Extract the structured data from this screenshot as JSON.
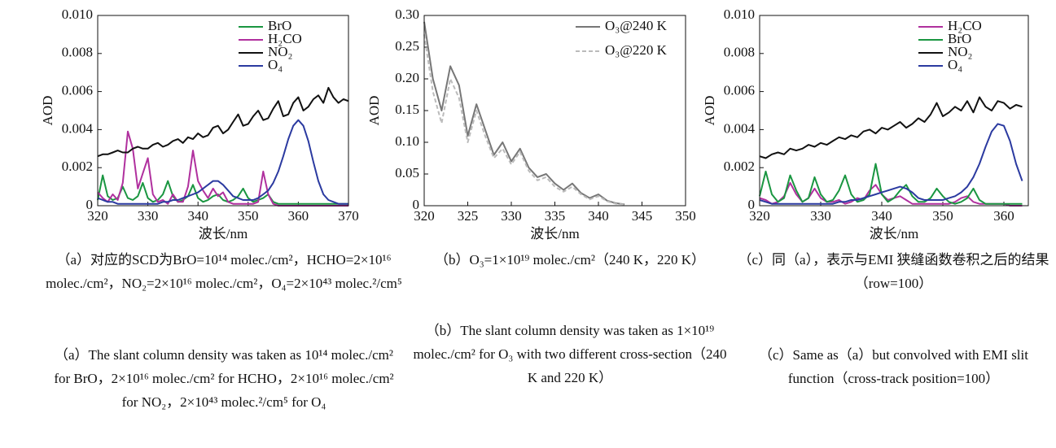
{
  "chart_data": [
    {
      "type": "line",
      "y_label": "AOD",
      "x_label": "波长/nm",
      "legend": "upper right",
      "caption_zh": "（a）对应的SCD为BrO=10¹⁴ molec./cm²，HCHO=2×10¹⁶ molec./cm²，NO₂=2×10¹⁶ molec./cm²，O₄=2×10⁴³ molec.²/cm⁵",
      "caption_en": "（a）The slant column density was taken as 10¹⁴ molec./cm² for BrO，2×10¹⁶ molec./cm² for HCHO，2×10¹⁶ molec./cm² for NO₂，2×10⁴³ molec.²/cm⁵ for O₄",
      "xlim": [
        320,
        370
      ],
      "xticks": [
        320,
        330,
        340,
        350,
        360,
        370
      ],
      "ylim": [
        0,
        0.01
      ],
      "yticks": [
        0,
        0.002,
        0.004,
        0.006,
        0.008,
        {
          "value": 0.01,
          "label": "0.010"
        }
      ],
      "x": [
        320,
        321,
        322,
        323,
        324,
        325,
        326,
        327,
        328,
        329,
        330,
        331,
        332,
        333,
        334,
        335,
        336,
        337,
        338,
        339,
        340,
        341,
        342,
        343,
        344,
        345,
        346,
        347,
        348,
        349,
        350,
        351,
        352,
        353,
        354,
        355,
        356,
        357,
        358,
        359,
        360,
        361,
        362,
        363,
        364,
        365,
        366,
        367,
        368,
        369,
        370
      ],
      "series": [
        {
          "name": "BrO",
          "color": "#1a9641",
          "values": [
            0.0003,
            0.0016,
            0.0005,
            0.0003,
            0.0004,
            0.001,
            0.0004,
            0.0003,
            0.0005,
            0.0012,
            0.0004,
            0.0002,
            0.0003,
            0.0006,
            0.0013,
            0.0005,
            0.0002,
            0.0003,
            0.0005,
            0.0011,
            0.0004,
            0.0002,
            0.0003,
            0.0005,
            0.0006,
            0.0003,
            0.0002,
            0.0003,
            0.0005,
            0.0009,
            0.0004,
            0.0002,
            0.0003,
            0.0004,
            0.0006,
            0.0002,
            0.0001,
            0.0001,
            0.0001,
            0.0001,
            0.0001,
            0.0001,
            0.0001,
            0.0001,
            0.0001,
            0.0001,
            0.0001,
            0.0001,
            0.0001,
            0.0001,
            0.0001
          ]
        },
        {
          "name": "H₂CO",
          "color": "#b0309e",
          "values": [
            0.0007,
            0.0004,
            0.0002,
            0.0006,
            0.0003,
            0.0012,
            0.0039,
            0.003,
            0.0009,
            0.0017,
            0.0025,
            0.0006,
            0.0002,
            0.0003,
            0.0001,
            0.0006,
            0.0002,
            0.0002,
            0.001,
            0.0029,
            0.0013,
            0.0008,
            0.0004,
            0.0009,
            0.0005,
            0.0007,
            0.0002,
            0.0001,
            0.0001,
            0.0001,
            0.0001,
            0.0001,
            0.0002,
            0.0018,
            0.0006,
            0.0001,
            0,
            0,
            0,
            0,
            0,
            0,
            0,
            0,
            0,
            0,
            0,
            0,
            0,
            0,
            0
          ]
        },
        {
          "name": "NO₂",
          "color": "#111111",
          "values": [
            0.0026,
            0.0027,
            0.0027,
            0.0028,
            0.0029,
            0.0028,
            0.0028,
            0.003,
            0.0031,
            0.003,
            0.003,
            0.0032,
            0.0033,
            0.0031,
            0.0032,
            0.0034,
            0.0035,
            0.0033,
            0.0036,
            0.0035,
            0.0038,
            0.0036,
            0.0037,
            0.0041,
            0.0042,
            0.0038,
            0.004,
            0.0044,
            0.0048,
            0.0042,
            0.0043,
            0.0047,
            0.005,
            0.0045,
            0.0046,
            0.0051,
            0.0055,
            0.0047,
            0.0048,
            0.0054,
            0.0057,
            0.005,
            0.0052,
            0.0056,
            0.0058,
            0.0054,
            0.0062,
            0.0057,
            0.0054,
            0.0056,
            0.0055
          ]
        },
        {
          "name": "O₄",
          "color": "#2b3aa0",
          "values": [
            0.0004,
            0.0003,
            0.0002,
            0.0002,
            0.0001,
            0.0001,
            0.0001,
            0.0001,
            0.0001,
            0.0001,
            0.0001,
            0.0001,
            0.0001,
            0.0002,
            0.0002,
            0.0003,
            0.0003,
            0.0004,
            0.0005,
            0.0006,
            0.0007,
            0.0009,
            0.0011,
            0.0013,
            0.0013,
            0.0011,
            0.0008,
            0.0005,
            0.0004,
            0.0003,
            0.0003,
            0.0003,
            0.0004,
            0.0006,
            0.0008,
            0.0012,
            0.0018,
            0.0026,
            0.0035,
            0.0042,
            0.0045,
            0.0042,
            0.0034,
            0.0023,
            0.0013,
            0.0006,
            0.0003,
            0.0002,
            0.0001,
            0.0001,
            0.0001
          ]
        }
      ]
    },
    {
      "type": "line",
      "y_label": "AOD",
      "x_label": "波长/nm",
      "legend": "upper right",
      "caption_zh": "（b）O₃=1×10¹⁹ molec./cm²（240 K，220 K）",
      "caption_en": "（b）The slant column density was taken as 1×10¹⁹ molec./cm² for O₃ with two different cross-section（240 K and 220 K）",
      "xlim": [
        320,
        350
      ],
      "xticks": [
        320,
        325,
        330,
        335,
        340,
        345,
        350
      ],
      "ylim": [
        0,
        0.3
      ],
      "yticks": [
        0,
        0.05,
        {
          "value": 0.1,
          "label": "0.10"
        },
        0.15,
        {
          "value": 0.2,
          "label": "0.20"
        },
        0.25,
        {
          "value": 0.3,
          "label": "0.30"
        }
      ],
      "x": [
        320,
        321,
        322,
        323,
        324,
        325,
        326,
        327,
        328,
        329,
        330,
        331,
        332,
        333,
        334,
        335,
        336,
        337,
        338,
        339,
        340,
        341,
        342,
        343
      ],
      "series": [
        {
          "name": "O₃@240 K",
          "color": "#777777",
          "dash": false,
          "values": [
            0.29,
            0.2,
            0.15,
            0.22,
            0.19,
            0.11,
            0.16,
            0.12,
            0.08,
            0.1,
            0.07,
            0.09,
            0.06,
            0.045,
            0.05,
            0.035,
            0.025,
            0.035,
            0.02,
            0.012,
            0.018,
            0.008,
            0.004,
            0.002
          ]
        },
        {
          "name": "O₃@220 K",
          "color": "#bbbbbb",
          "dash": true,
          "values": [
            0.27,
            0.18,
            0.13,
            0.2,
            0.17,
            0.1,
            0.15,
            0.11,
            0.075,
            0.09,
            0.065,
            0.085,
            0.055,
            0.04,
            0.045,
            0.03,
            0.022,
            0.03,
            0.018,
            0.01,
            0.015,
            0.007,
            0.003,
            0.002
          ]
        }
      ]
    },
    {
      "type": "line",
      "y_label": "AOD",
      "x_label": "波长/nm",
      "legend": "upper right",
      "caption_zh": "（c）同（a），表示与EMI 狭缝函数卷积之后的结果（row=100）",
      "caption_en": "（c）Same as（a）but convolved with EMI slit function（cross-track position=100）",
      "xlim": [
        320,
        364
      ],
      "xticks": [
        320,
        330,
        340,
        350,
        360
      ],
      "ylim": [
        0,
        0.01
      ],
      "yticks": [
        0,
        0.002,
        0.004,
        0.006,
        0.008,
        {
          "value": 0.01,
          "label": "0.010"
        }
      ],
      "x": [
        320,
        321,
        322,
        323,
        324,
        325,
        326,
        327,
        328,
        329,
        330,
        331,
        332,
        333,
        334,
        335,
        336,
        337,
        338,
        339,
        340,
        341,
        342,
        343,
        344,
        345,
        346,
        347,
        348,
        349,
        350,
        351,
        352,
        353,
        354,
        355,
        356,
        357,
        358,
        359,
        360,
        361,
        362,
        363
      ],
      "series": [
        {
          "name": "H₂CO",
          "color": "#b0309e",
          "values": [
            0.0004,
            0.0003,
            0.0001,
            0.0002,
            0.0005,
            0.0012,
            0.0006,
            0.0002,
            0.0004,
            0.0009,
            0.0004,
            0.0002,
            0.0002,
            0.0003,
            0.0001,
            0.0002,
            0.0004,
            0.0003,
            0.0008,
            0.0011,
            0.0006,
            0.0003,
            0.0004,
            0.0005,
            0.0003,
            0.0001,
            0.0001,
            0.0001,
            0.0001,
            0.0001,
            0.0001,
            0.0001,
            0.0002,
            0.0004,
            0.0005,
            0.0002,
            0.0001,
            0.0001,
            0.0001,
            0.0001,
            0.0001,
            0,
            0,
            0
          ]
        },
        {
          "name": "BrO",
          "color": "#1a9641",
          "values": [
            0.0005,
            0.0018,
            0.0006,
            0.0002,
            0.0004,
            0.0016,
            0.0008,
            0.0002,
            0.0004,
            0.0015,
            0.0006,
            0.0002,
            0.0003,
            0.0008,
            0.0016,
            0.0006,
            0.0002,
            0.0003,
            0.0006,
            0.0022,
            0.0006,
            0.0002,
            0.0004,
            0.0008,
            0.0011,
            0.0005,
            0.0002,
            0.0002,
            0.0004,
            0.0009,
            0.0005,
            0.0002,
            0.0001,
            0.0002,
            0.0004,
            0.0009,
            0.0003,
            0.0001,
            0.0001,
            0.0001,
            0.0001,
            0.0001,
            0.0001,
            0.0001
          ]
        },
        {
          "name": "NO₂",
          "color": "#111111",
          "values": [
            0.0026,
            0.0025,
            0.0027,
            0.0028,
            0.0027,
            0.003,
            0.0029,
            0.003,
            0.0032,
            0.0031,
            0.0033,
            0.0032,
            0.0034,
            0.0036,
            0.0035,
            0.0037,
            0.0036,
            0.0039,
            0.004,
            0.0038,
            0.0041,
            0.004,
            0.0042,
            0.0044,
            0.0041,
            0.0043,
            0.0046,
            0.0044,
            0.0048,
            0.0054,
            0.0047,
            0.0049,
            0.0052,
            0.005,
            0.0055,
            0.0049,
            0.0057,
            0.0052,
            0.005,
            0.0055,
            0.0054,
            0.0051,
            0.0053,
            0.0052
          ]
        },
        {
          "name": "O₄",
          "color": "#2b3aa0",
          "values": [
            0.0003,
            0.0002,
            0.0001,
            0.0001,
            0.0001,
            0.0001,
            0.0001,
            0.0001,
            0.0001,
            0.0001,
            0.0001,
            0.0001,
            0.0001,
            0.0002,
            0.0002,
            0.0003,
            0.0003,
            0.0004,
            0.0005,
            0.0006,
            0.0007,
            0.0008,
            0.0009,
            0.001,
            0.0009,
            0.0007,
            0.0004,
            0.0003,
            0.0003,
            0.0003,
            0.0003,
            0.0004,
            0.0005,
            0.0007,
            0.001,
            0.0015,
            0.0022,
            0.0031,
            0.0039,
            0.0043,
            0.0042,
            0.0034,
            0.0022,
            0.0013
          ]
        }
      ]
    }
  ]
}
